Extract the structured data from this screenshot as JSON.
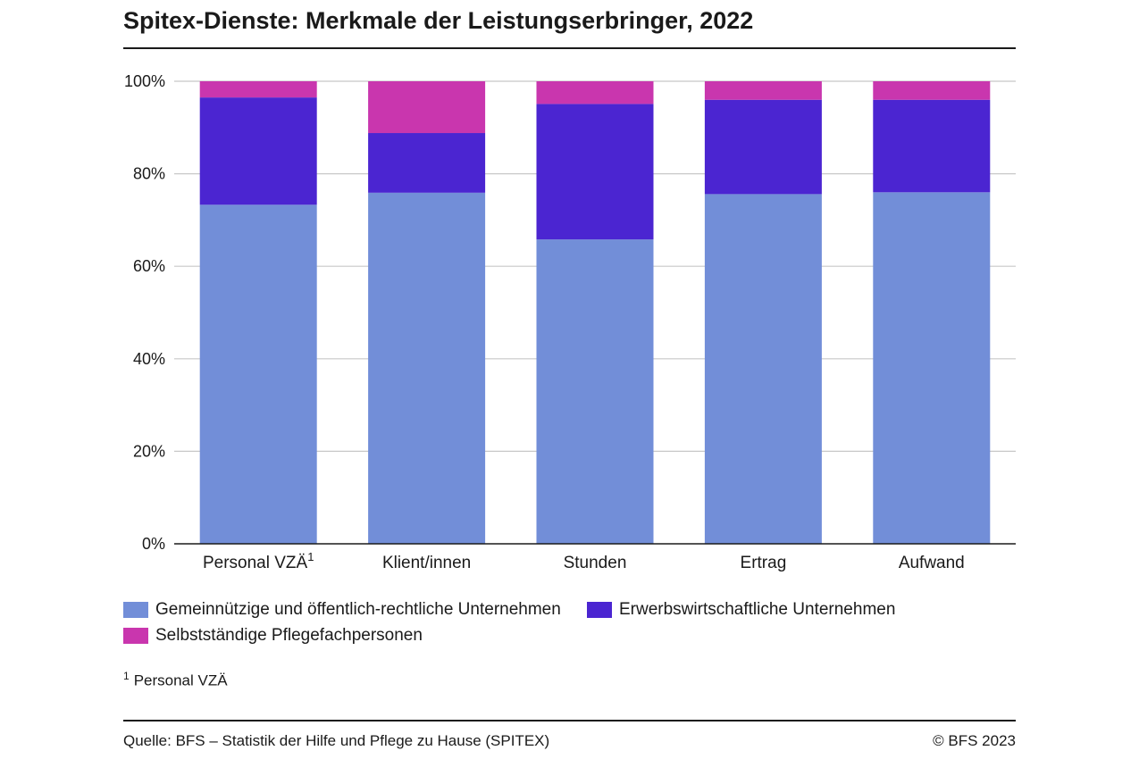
{
  "title": "Spitex-Dienste: Merkmale der Leistungserbringer, 2022",
  "footnote": {
    "marker": "1",
    "text": "Personal VZÄ"
  },
  "source": "Quelle: BFS – Statistik der Hilfe und Pflege zu Hause (SPITEX)",
  "copyright": "© BFS 2023",
  "chart_data": {
    "type": "bar",
    "stacked": true,
    "categories": [
      "Personal VZÄ",
      "Klient/innen",
      "Stunden",
      "Ertrag",
      "Aufwand"
    ],
    "category_superscripts": [
      "1",
      "",
      "",
      "",
      ""
    ],
    "series": [
      {
        "name": "Gemeinnützige und öffentlich-rechtliche Unternehmen",
        "color": "#728ed8",
        "values": [
          73.3,
          75.9,
          65.8,
          75.6,
          76.0
        ]
      },
      {
        "name": "Erwerbswirtschaftliche Unternehmen",
        "color": "#4b25d1",
        "values": [
          23.2,
          12.9,
          29.3,
          20.4,
          20.0
        ]
      },
      {
        "name": "Selbstständige Pflegefachpersonen",
        "color": "#c936ae",
        "values": [
          3.5,
          11.2,
          4.9,
          4.0,
          4.0
        ]
      }
    ],
    "ylim": [
      0,
      100
    ],
    "yticks": [
      0,
      20,
      40,
      60,
      80,
      100
    ],
    "ytick_labels": [
      "0%",
      "20%",
      "40%",
      "60%",
      "80%",
      "100%"
    ],
    "grid": true,
    "legend_position": "bottom"
  }
}
